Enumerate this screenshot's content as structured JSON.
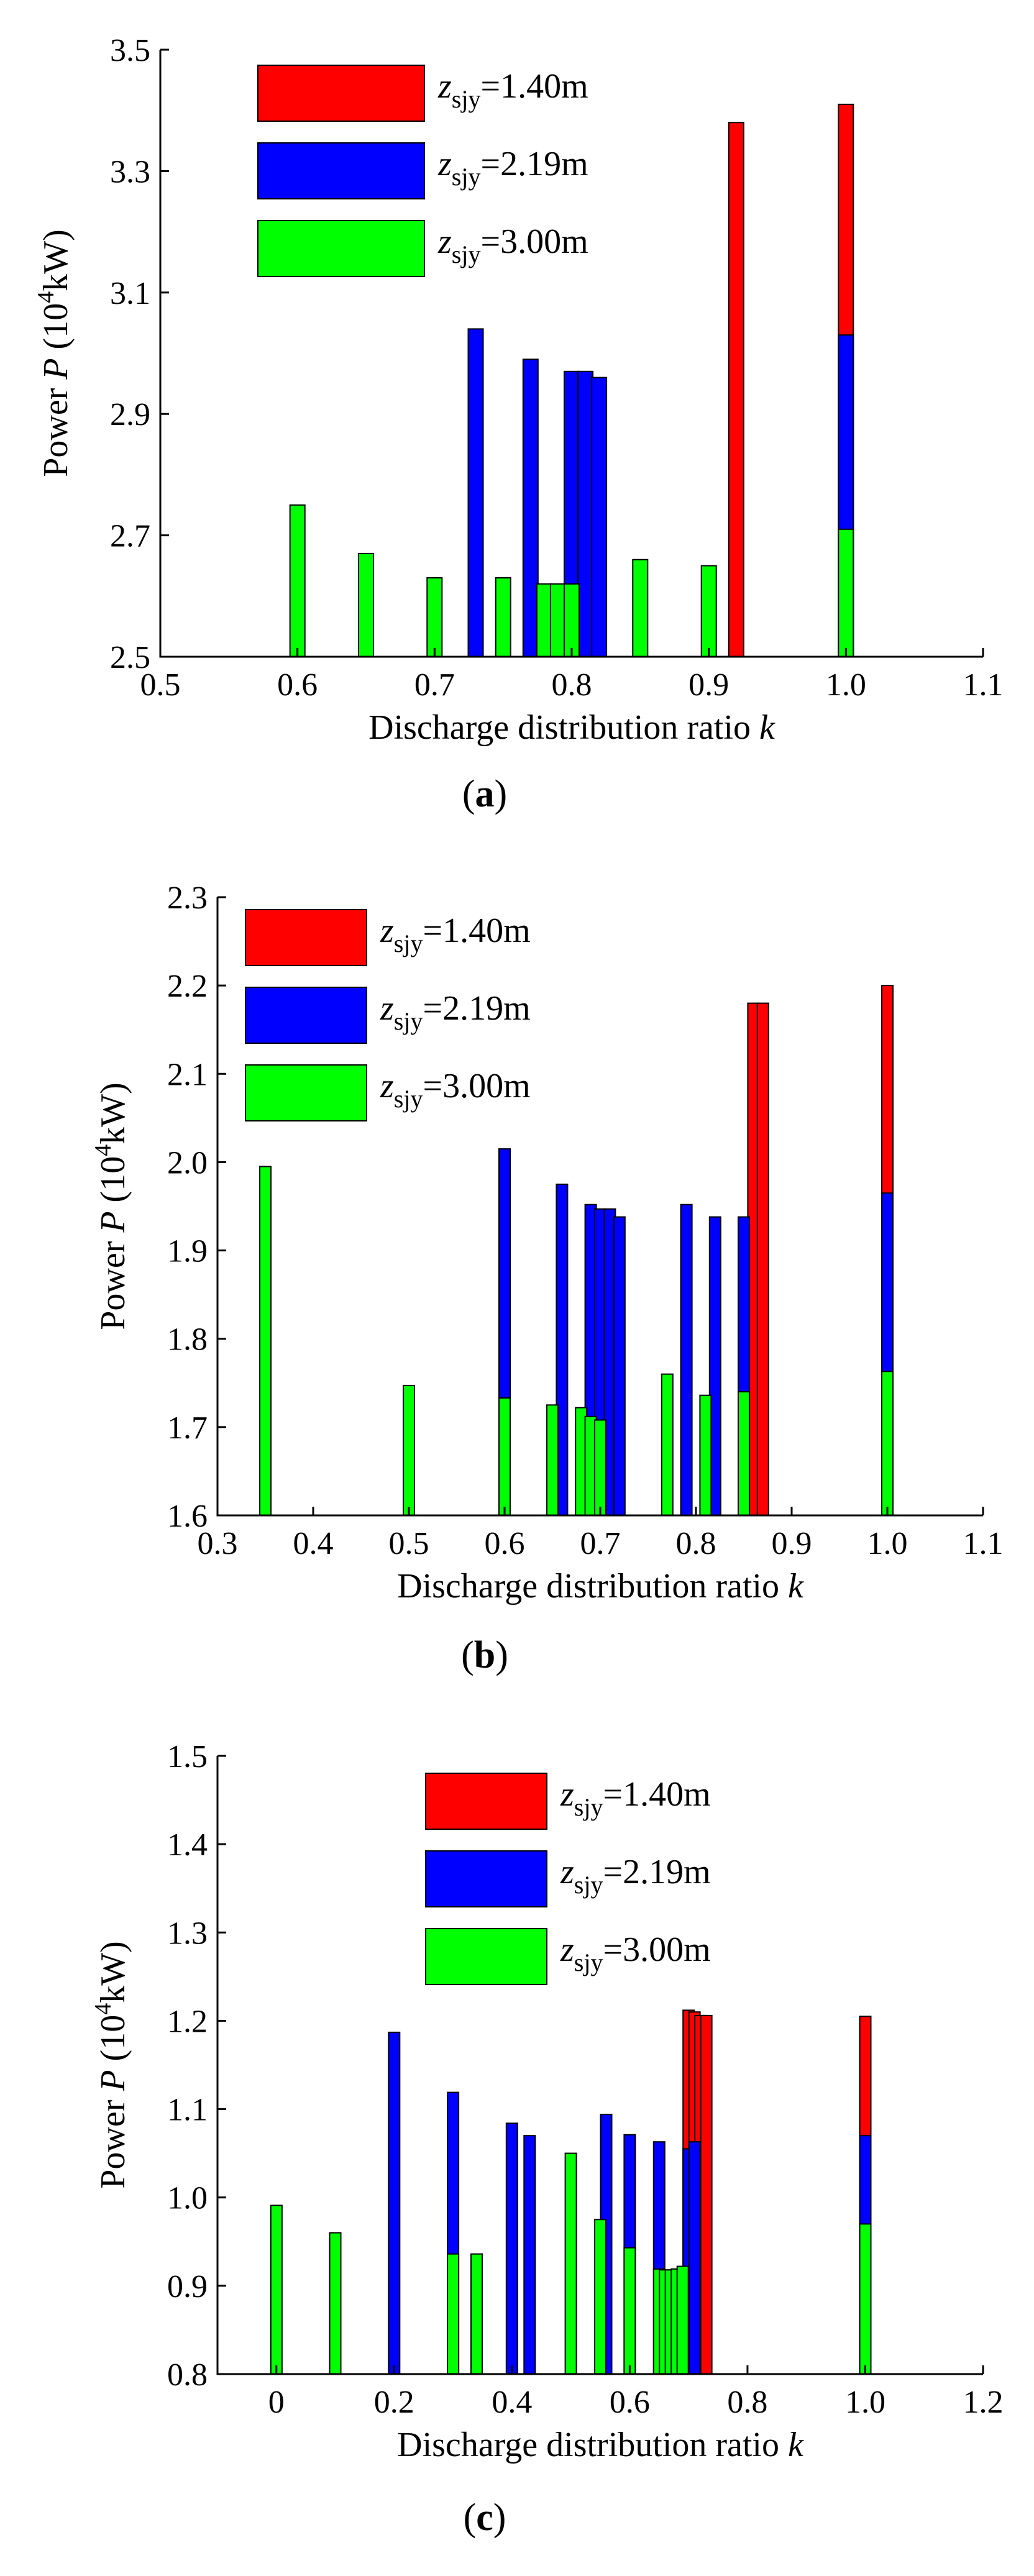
{
  "chart_data": [
    {
      "type": "bar",
      "panel_label": "a",
      "xlabel": "Discharge distribution ratio",
      "xlabel_var": "k",
      "ylabel": "Power",
      "ylabel_var": "P",
      "ylabel_unit_open": "(10",
      "ylabel_unit_exp": "4",
      "ylabel_unit_close": "kW)",
      "xlim": [
        0.5,
        1.1
      ],
      "ylim": [
        2.5,
        3.5
      ],
      "xticks": [
        "0.5",
        "0.6",
        "0.7",
        "0.8",
        "0.9",
        "1.0",
        "1.1"
      ],
      "yticks": [
        "2.5",
        "2.7",
        "2.9",
        "3.1",
        "3.3",
        "3.5"
      ],
      "legend_position": "top-left",
      "series": [
        {
          "name": "z_sjy=1.40m",
          "label_main": "z",
          "label_sub": "sjy",
          "label_value": "=1.40m",
          "color": "#ff0000",
          "x": [
            0.92,
            1.0
          ],
          "values": [
            3.38,
            3.41
          ]
        },
        {
          "name": "z_sjy=2.19m",
          "label_main": "z",
          "label_sub": "sjy",
          "label_value": "=2.19m",
          "color": "#0000ff",
          "x": [
            0.73,
            0.77,
            0.8,
            0.81,
            0.82,
            1.0
          ],
          "values": [
            3.04,
            2.99,
            2.97,
            2.97,
            2.96,
            3.03
          ]
        },
        {
          "name": "z_sjy=3.00m",
          "label_main": "z",
          "label_sub": "sjy",
          "label_value": "=3.00m",
          "color": "#00ff00",
          "x": [
            0.6,
            0.65,
            0.7,
            0.75,
            0.78,
            0.79,
            0.8,
            0.85,
            0.9,
            1.0
          ],
          "values": [
            2.75,
            2.67,
            2.63,
            2.63,
            2.62,
            2.62,
            2.62,
            2.66,
            2.65,
            2.71
          ]
        }
      ]
    },
    {
      "type": "bar",
      "panel_label": "b",
      "xlabel": "Discharge distribution ratio",
      "xlabel_var": "k",
      "ylabel": "Power",
      "ylabel_var": "P",
      "ylabel_unit_open": "(10",
      "ylabel_unit_exp": "4",
      "ylabel_unit_close": "kW)",
      "xlim": [
        0.3,
        1.1
      ],
      "ylim": [
        1.6,
        2.3
      ],
      "xticks": [
        "0.3",
        "0.4",
        "0.5",
        "0.6",
        "0.7",
        "0.8",
        "0.9",
        "1.0",
        "1.1"
      ],
      "yticks": [
        "1.6",
        "1.7",
        "1.8",
        "1.9",
        "2.0",
        "2.1",
        "2.2",
        "2.3"
      ],
      "legend_position": "top-left",
      "series": [
        {
          "name": "z_sjy=1.40m",
          "label_main": "z",
          "label_sub": "sjy",
          "label_value": "=1.40m",
          "color": "#ff0000",
          "x": [
            0.86,
            0.87,
            1.0
          ],
          "values": [
            2.18,
            2.18,
            2.2
          ]
        },
        {
          "name": "z_sjy=2.19m",
          "label_main": "z",
          "label_sub": "sjy",
          "label_value": "=2.19m",
          "color": "#0000ff",
          "x": [
            0.6,
            0.66,
            0.69,
            0.7,
            0.71,
            0.72,
            0.79,
            0.82,
            0.85,
            1.0
          ],
          "values": [
            2.015,
            1.975,
            1.952,
            1.947,
            1.947,
            1.938,
            1.952,
            1.938,
            1.938,
            1.965
          ]
        },
        {
          "name": "z_sjy=3.00m",
          "label_main": "z",
          "label_sub": "sjy",
          "label_value": "=3.00m",
          "color": "#00ff00",
          "x": [
            0.35,
            0.5,
            0.6,
            0.65,
            0.68,
            0.69,
            0.7,
            0.77,
            0.81,
            0.85,
            1.0
          ],
          "values": [
            1.995,
            1.747,
            1.733,
            1.725,
            1.722,
            1.712,
            1.708,
            1.76,
            1.736,
            1.74,
            1.763
          ]
        }
      ]
    },
    {
      "type": "bar",
      "panel_label": "c",
      "xlabel": "Discharge distribution ratio",
      "xlabel_var": "k",
      "ylabel": "Power",
      "ylabel_var": "P",
      "ylabel_unit_open": "(10",
      "ylabel_unit_exp": "4",
      "ylabel_unit_close": "kW)",
      "xlim": [
        -0.1,
        1.2
      ],
      "ylim": [
        0.8,
        1.5
      ],
      "xticks": [
        "0",
        "0.2",
        "0.4",
        "0.6",
        "0.8",
        "1.0",
        "1.2"
      ],
      "xtick_values": [
        0,
        0.2,
        0.4,
        0.6,
        0.8,
        1.0,
        1.2
      ],
      "yticks": [
        "0.8",
        "0.9",
        "1.0",
        "1.1",
        "1.2",
        "1.3",
        "1.4",
        "1.5"
      ],
      "legend_position": "top-center",
      "series": [
        {
          "name": "z_sjy=1.40m",
          "label_main": "z",
          "label_sub": "sjy",
          "label_value": "=1.40m",
          "color": "#ff0000",
          "x": [
            0.7,
            0.71,
            0.72,
            0.73,
            1.0
          ],
          "values": [
            1.212,
            1.21,
            1.206,
            1.206,
            1.205
          ]
        },
        {
          "name": "z_sjy=2.19m",
          "label_main": "z",
          "label_sub": "sjy",
          "label_value": "=2.19m",
          "color": "#0000ff",
          "x": [
            0.2,
            0.3,
            0.4,
            0.43,
            0.56,
            0.6,
            0.65,
            0.7,
            0.71,
            1.0
          ],
          "values": [
            1.187,
            1.119,
            1.084,
            1.07,
            1.094,
            1.071,
            1.063,
            1.055,
            1.063,
            1.07
          ]
        },
        {
          "name": "z_sjy=3.00m",
          "label_main": "z",
          "label_sub": "sjy",
          "label_value": "=3.00m",
          "color": "#00ff00",
          "x": [
            0,
            0.1,
            0.3,
            0.34,
            0.5,
            0.55,
            0.6,
            0.65,
            0.66,
            0.67,
            0.68,
            0.69,
            1.0
          ],
          "values": [
            0.991,
            0.96,
            0.936,
            0.936,
            1.05,
            0.975,
            0.943,
            0.919,
            0.918,
            0.918,
            0.919,
            0.922,
            0.97
          ]
        }
      ]
    }
  ]
}
